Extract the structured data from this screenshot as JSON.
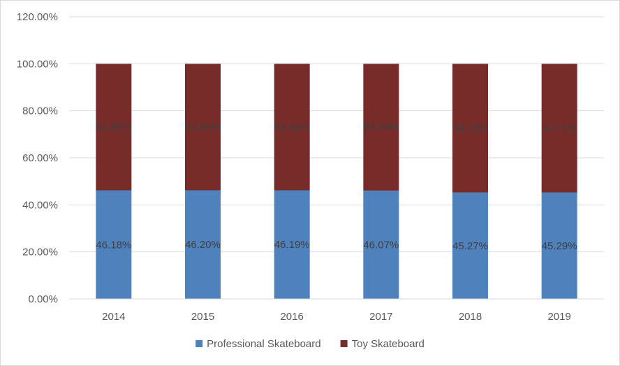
{
  "chart_data": {
    "type": "bar",
    "stacked": true,
    "categories": [
      "2014",
      "2015",
      "2016",
      "2017",
      "2018",
      "2019"
    ],
    "series": [
      {
        "name": "Professional Skateboard",
        "values": [
          46.18,
          46.2,
          46.19,
          46.07,
          45.27,
          45.29
        ],
        "labels": [
          "46.18%",
          "46.20%",
          "46.19%",
          "46.07%",
          "45.27%",
          "45.29%"
        ],
        "color": "#4f81bd"
      },
      {
        "name": "Toy Skateboard",
        "values": [
          53.82,
          53.8,
          53.81,
          53.93,
          54.73,
          54.71
        ],
        "labels": [
          "53.82%",
          "53.80%",
          "53.81%",
          "53.93%",
          "54.73%",
          "54.71%"
        ],
        "color": "#772c2a"
      }
    ],
    "ylim": [
      0,
      120
    ],
    "yticks": [
      "0.00%",
      "20.00%",
      "40.00%",
      "60.00%",
      "80.00%",
      "100.00%",
      "120.00%"
    ],
    "grid": true,
    "legend_position": "bottom",
    "title": "",
    "xlabel": "",
    "ylabel": ""
  }
}
